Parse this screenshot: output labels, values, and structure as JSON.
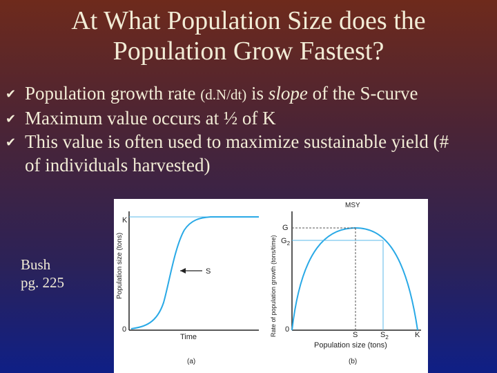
{
  "title_line1": "At What Population Size does the",
  "title_line2": "Population Grow Fastest?",
  "bullets": [
    {
      "pre": "Population growth rate ",
      "small": "(d.N/dt)",
      "mid": " is ",
      "em": "slope",
      "post": " of the S-curve"
    },
    {
      "text": "Maximum value occurs at ½ of K"
    },
    {
      "text": "This value is often used to maximize sustainable yield (# of individuals harvested)"
    }
  ],
  "caption_line1": "Bush",
  "caption_line2": "pg. 225",
  "figure_a": {
    "ylabel": "Population size (tons)",
    "xlabel": "Time",
    "K": "K",
    "zero": "0",
    "S": "S",
    "panel": "(a)"
  },
  "figure_b": {
    "ylabel": "Rate of population growth (tons/time)",
    "ylabel_overlay": "/time)",
    "xlabel": "Population size (tons)",
    "title": "MSY",
    "G": "G",
    "G2": "G",
    "G2_sub": "2",
    "zero": "0",
    "S": "S",
    "S2": "S",
    "S2_sub": "2",
    "K": "K",
    "panel": "(b)"
  }
}
